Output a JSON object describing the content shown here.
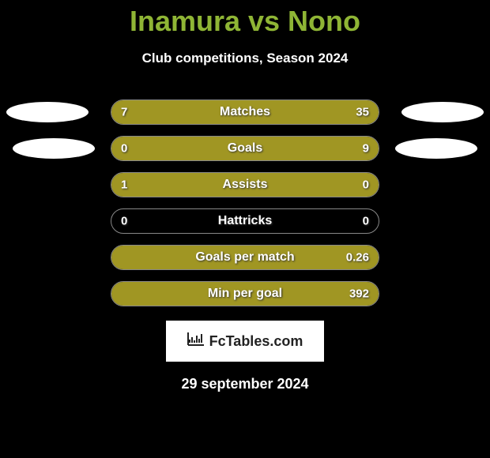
{
  "title": "Inamura vs Nono",
  "subtitle": "Club competitions, Season 2024",
  "logo": "FcTables.com",
  "date": "29 september 2024",
  "colors": {
    "accent": "#8fb535",
    "bar_fill": "#a09623",
    "bar_border": "#888888",
    "background": "#000000",
    "text": "#ffffff",
    "logo_bg": "#ffffff",
    "logo_text": "#222222"
  },
  "stats": [
    {
      "label": "Matches",
      "left_val": "7",
      "right_val": "35",
      "left_fill_pct": 17,
      "right_fill_pct": 83
    },
    {
      "label": "Goals",
      "left_val": "0",
      "right_val": "9",
      "left_fill_pct": 0,
      "right_fill_pct": 100
    },
    {
      "label": "Assists",
      "left_val": "1",
      "right_val": "0",
      "left_fill_pct": 100,
      "right_fill_pct": 0
    },
    {
      "label": "Hattricks",
      "left_val": "0",
      "right_val": "0",
      "left_fill_pct": 0,
      "right_fill_pct": 0
    },
    {
      "label": "Goals per match",
      "left_val": "",
      "right_val": "0.26",
      "left_fill_pct": 0,
      "right_fill_pct": 100
    },
    {
      "label": "Min per goal",
      "left_val": "",
      "right_val": "392",
      "left_fill_pct": 0,
      "right_fill_pct": 100
    }
  ]
}
